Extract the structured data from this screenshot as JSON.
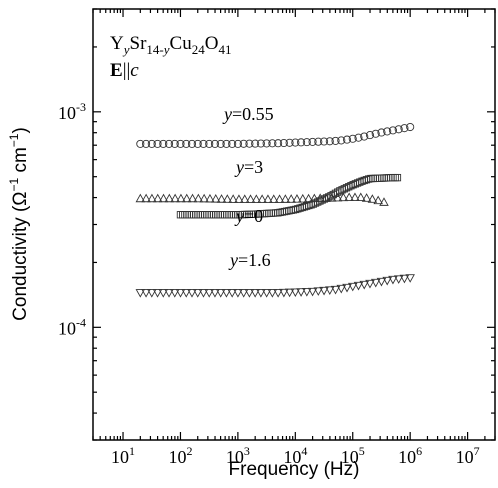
{
  "chart_data": {
    "type": "scatter",
    "x_scale": "log",
    "y_scale": "log",
    "xlim": [
      3,
      30000000
    ],
    "ylim": [
      3e-05,
      0.003
    ],
    "xlabel": "Frequency (Hz)",
    "ylabel": {
      "base": "Conductivity (",
      "omega": "Ω",
      "sup1": "−1",
      "cm": " cm",
      "sup2": "−1",
      "close": ")"
    },
    "x_ticks": [
      {
        "value": 10,
        "base": "10",
        "exp": "1"
      },
      {
        "value": 100,
        "base": "10",
        "exp": "2"
      },
      {
        "value": 1000,
        "base": "10",
        "exp": "3"
      },
      {
        "value": 10000,
        "base": "10",
        "exp": "4"
      },
      {
        "value": 100000,
        "base": "10",
        "exp": "5"
      },
      {
        "value": 1000000,
        "base": "10",
        "exp": "6"
      },
      {
        "value": 10000000,
        "base": "10",
        "exp": "7"
      }
    ],
    "y_ticks": [
      {
        "value": 0.0001,
        "base": "10",
        "exp": "-4"
      },
      {
        "value": 0.001,
        "base": "10",
        "exp": "-3"
      }
    ],
    "annotations": {
      "formula": {
        "y1": "Y",
        "y2": "y",
        "sr": "Sr",
        "sub": "14-",
        "suby": "y",
        "cu": "Cu",
        "sub24": "24",
        "o": "O",
        "sub41": "41"
      },
      "field": {
        "e": "E",
        "par": "||",
        "c": "c"
      }
    },
    "series": [
      {
        "name": "y=0.55",
        "label_prefix": "y",
        "label_value": "=0.55",
        "marker": "circle",
        "points": [
          [
            20,
            0.00071
          ],
          [
            40,
            0.00071
          ],
          [
            100,
            0.00071
          ],
          [
            200,
            0.00071
          ],
          [
            500,
            0.00071
          ],
          [
            1000,
            0.00071
          ],
          [
            2000,
            0.000712
          ],
          [
            5000,
            0.000715
          ],
          [
            10000,
            0.00072
          ],
          [
            20000,
            0.000725
          ],
          [
            40000,
            0.00073
          ],
          [
            60000,
            0.000735
          ],
          [
            100000,
            0.00075
          ],
          [
            150000,
            0.000765
          ],
          [
            200000,
            0.00078
          ],
          [
            300000,
            0.0008
          ],
          [
            500000,
            0.00082
          ],
          [
            1000000,
            0.00085
          ]
        ]
      },
      {
        "name": "y=3",
        "label_prefix": "y",
        "label_value": "=3",
        "marker": "triangle-up",
        "points": [
          [
            20,
            0.000395
          ],
          [
            50,
            0.000395
          ],
          [
            100,
            0.000395
          ],
          [
            200,
            0.000395
          ],
          [
            500,
            0.000393
          ],
          [
            1000,
            0.000392
          ],
          [
            2000,
            0.000392
          ],
          [
            5000,
            0.000392
          ],
          [
            10000,
            0.000393
          ],
          [
            20000,
            0.000395
          ],
          [
            40000,
            0.000397
          ],
          [
            80000,
            0.0004
          ],
          [
            150000,
            0.0004
          ],
          [
            250000,
            0.00039
          ],
          [
            350000,
            0.00038
          ]
        ]
      },
      {
        "name": "y=0",
        "label_prefix": "y",
        "label_value": "=0",
        "marker": "square",
        "points": [
          [
            100,
            0.000333
          ],
          [
            200,
            0.000333
          ],
          [
            500,
            0.000333
          ],
          [
            1000,
            0.000333
          ],
          [
            2000,
            0.000335
          ],
          [
            5000,
            0.00034
          ],
          [
            10000,
            0.000352
          ],
          [
            20000,
            0.000372
          ],
          [
            40000,
            0.000405
          ],
          [
            60000,
            0.00043
          ],
          [
            100000,
            0.000458
          ],
          [
            150000,
            0.000478
          ],
          [
            200000,
            0.00049
          ],
          [
            300000,
            0.000492
          ],
          [
            500000,
            0.000495
          ],
          [
            600000,
            0.000495
          ]
        ]
      },
      {
        "name": "y=1.6",
        "label_prefix": "y",
        "label_value": "=1.6",
        "marker": "triangle-down",
        "points": [
          [
            20,
            0.000145
          ],
          [
            50,
            0.000145
          ],
          [
            100,
            0.000145
          ],
          [
            200,
            0.000145
          ],
          [
            500,
            0.000145
          ],
          [
            1000,
            0.000145
          ],
          [
            2000,
            0.000145
          ],
          [
            5000,
            0.000145
          ],
          [
            10000,
            0.000146
          ],
          [
            20000,
            0.000147
          ],
          [
            50000,
            0.00015
          ],
          [
            100000,
            0.000155
          ],
          [
            200000,
            0.00016
          ],
          [
            500000,
            0.000167
          ],
          [
            1000000,
            0.00017
          ]
        ]
      }
    ]
  }
}
